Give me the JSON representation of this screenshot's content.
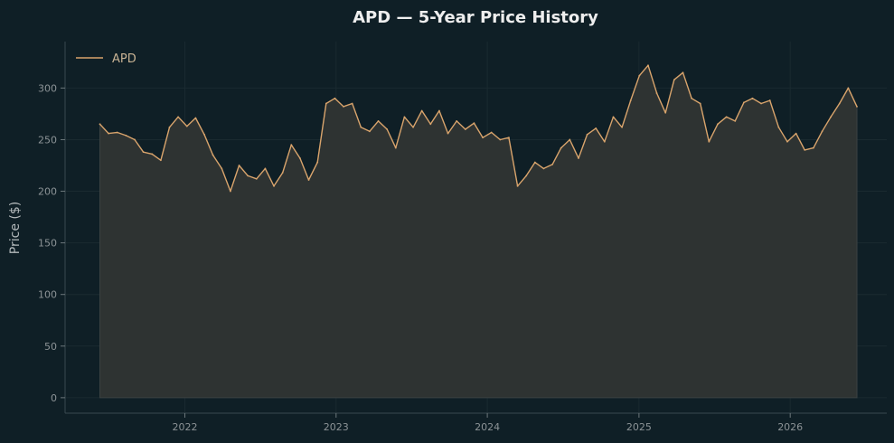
{
  "chart_data": {
    "type": "area",
    "title": "APD — 5-Year Price History",
    "xlabel": "",
    "ylabel": "Price ($)",
    "x_ticks": [
      "2022",
      "2023",
      "2024",
      "2025",
      "2026"
    ],
    "y_ticks": [
      0,
      50,
      100,
      150,
      200,
      250,
      300
    ],
    "ylim": [
      -15,
      345
    ],
    "xlim": [
      "2021-03-18",
      "2026-08-22"
    ],
    "grid": true,
    "legend_position": "top-left",
    "colors": {
      "line": "#d9a46c",
      "fill": "#2e3332",
      "background": "#0f1f26",
      "axis": "#3a4a50",
      "grid": "#1a2a30"
    },
    "series": [
      {
        "name": "APD",
        "x": [
          "2021-06-10",
          "2021-07-01",
          "2021-07-22",
          "2021-08-12",
          "2021-09-02",
          "2021-09-23",
          "2021-10-14",
          "2021-11-04",
          "2021-11-25",
          "2021-12-16",
          "2022-01-06",
          "2022-01-27",
          "2022-02-17",
          "2022-03-10",
          "2022-03-31",
          "2022-04-21",
          "2022-05-12",
          "2022-06-02",
          "2022-06-23",
          "2022-07-14",
          "2022-08-04",
          "2022-08-25",
          "2022-09-15",
          "2022-10-06",
          "2022-10-27",
          "2022-11-17",
          "2022-12-08",
          "2022-12-29",
          "2023-01-19",
          "2023-02-09",
          "2023-03-02",
          "2023-03-23",
          "2023-04-13",
          "2023-05-04",
          "2023-05-25",
          "2023-06-15",
          "2023-07-06",
          "2023-07-27",
          "2023-08-17",
          "2023-09-07",
          "2023-09-28",
          "2023-10-19",
          "2023-11-09",
          "2023-11-30",
          "2023-12-21",
          "2024-01-11",
          "2024-02-01",
          "2024-02-22",
          "2024-03-14",
          "2024-04-04",
          "2024-04-25",
          "2024-05-16",
          "2024-06-06",
          "2024-06-27",
          "2024-07-18",
          "2024-08-08",
          "2024-08-29",
          "2024-09-19",
          "2024-10-10",
          "2024-10-31",
          "2024-11-21",
          "2024-12-12",
          "2025-01-02",
          "2025-01-23",
          "2025-02-13",
          "2025-03-06",
          "2025-03-27",
          "2025-04-17",
          "2025-05-08",
          "2025-05-29",
          "2025-06-19",
          "2025-07-10",
          "2025-07-31",
          "2025-08-21",
          "2025-09-11",
          "2025-10-02",
          "2025-10-23",
          "2025-11-13",
          "2025-12-04",
          "2025-12-25",
          "2026-01-15",
          "2026-02-05",
          "2026-02-26",
          "2026-03-19",
          "2026-04-09",
          "2026-04-30",
          "2026-05-21",
          "2026-06-11"
        ],
        "values": [
          265,
          256,
          257,
          254,
          250,
          238,
          236,
          230,
          262,
          272,
          263,
          271,
          255,
          235,
          222,
          200,
          225,
          215,
          212,
          222,
          205,
          218,
          245,
          232,
          211,
          228,
          285,
          290,
          282,
          285,
          262,
          258,
          268,
          260,
          242,
          272,
          262,
          278,
          265,
          278,
          256,
          268,
          260,
          266,
          252,
          257,
          250,
          252,
          205,
          215,
          228,
          222,
          226,
          242,
          250,
          232,
          255,
          261,
          248,
          272,
          262,
          288,
          312,
          322,
          295,
          276,
          308,
          315,
          290,
          285,
          248,
          265,
          272,
          268,
          286,
          290,
          285,
          288,
          262,
          248,
          256,
          240,
          242,
          258,
          272,
          285,
          300,
          282
        ]
      }
    ]
  }
}
